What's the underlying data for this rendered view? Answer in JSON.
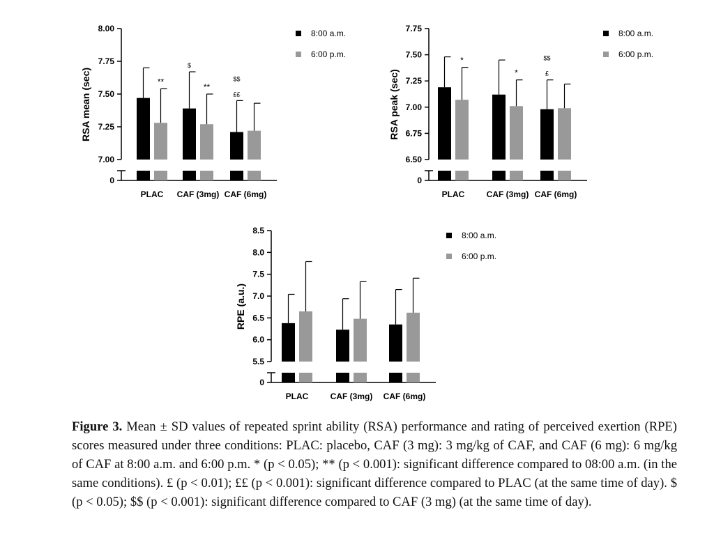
{
  "chart_data": [
    {
      "type": "bar",
      "ylabel": "RSA mean (sec)",
      "categories": [
        "PLAC",
        "CAF (3mg)",
        "CAF (6mg)"
      ],
      "ylim": [
        7.0,
        8.0
      ],
      "yticks": [
        "8.00",
        "7.75",
        "7.50",
        "7.25",
        "7.00"
      ],
      "broken_axis_zero_label": "0",
      "legend": [
        "8:00 a.m.",
        "6:00 p.m."
      ],
      "legend_position": "right",
      "series": [
        {
          "name": "8:00 a.m.",
          "color": "#000000",
          "values": [
            7.47,
            7.39,
            7.21
          ],
          "sd": [
            0.23,
            0.28,
            0.24
          ],
          "annotations": [
            "",
            "$",
            "$$\n££"
          ]
        },
        {
          "name": "6:00 p.m.",
          "color": "#999999",
          "values": [
            7.28,
            7.27,
            7.22
          ],
          "sd": [
            0.26,
            0.23,
            0.21
          ],
          "annotations": [
            "**",
            "**",
            ""
          ]
        }
      ]
    },
    {
      "type": "bar",
      "ylabel": "RSA peak (sec)",
      "categories": [
        "PLAC",
        "CAF (3mg)",
        "CAF (6mg)"
      ],
      "ylim": [
        6.5,
        7.75
      ],
      "yticks": [
        "7.75",
        "7.50",
        "7.25",
        "7.00",
        "6.75",
        "6.50"
      ],
      "broken_axis_zero_label": "0",
      "legend": [
        "8:00 a.m.",
        "6:00 p.m."
      ],
      "legend_position": "right",
      "series": [
        {
          "name": "8:00 a.m.",
          "color": "#000000",
          "values": [
            7.19,
            7.12,
            6.98
          ],
          "sd": [
            0.29,
            0.33,
            0.28
          ],
          "annotations": [
            "",
            "",
            "$$\n£"
          ]
        },
        {
          "name": "6:00 p.m.",
          "color": "#999999",
          "values": [
            7.07,
            7.01,
            6.99
          ],
          "sd": [
            0.31,
            0.25,
            0.23
          ],
          "annotations": [
            "*",
            "*",
            ""
          ]
        }
      ]
    },
    {
      "type": "bar",
      "ylabel": "RPE (a.u.)",
      "categories": [
        "PLAC",
        "CAF (3mg)",
        "CAF (6mg)"
      ],
      "ylim": [
        5.5,
        8.5
      ],
      "yticks": [
        "8.5",
        "8.0",
        "7.5",
        "7.0",
        "6.5",
        "6.0",
        "5.5"
      ],
      "broken_axis_zero_label": "0",
      "legend": [
        "8:00 a.m.",
        "6:00 p.m."
      ],
      "legend_position": "right",
      "series": [
        {
          "name": "8:00 a.m.",
          "color": "#000000",
          "values": [
            6.38,
            6.23,
            6.35
          ],
          "sd": [
            0.66,
            0.71,
            0.8
          ],
          "annotations": [
            "",
            "",
            ""
          ]
        },
        {
          "name": "6:00 p.m.",
          "color": "#999999",
          "values": [
            6.65,
            6.48,
            6.62
          ],
          "sd": [
            1.14,
            0.85,
            0.79
          ],
          "annotations": [
            "",
            "",
            ""
          ]
        }
      ]
    }
  ],
  "caption": {
    "label": "Figure 3.",
    "text": "Mean ± SD values of repeated sprint ability (RSA) performance and rating of perceived exertion (RPE) scores measured under three conditions: PLAC: placebo, CAF (3 mg): 3 mg/kg of CAF, and CAF (6 mg): 6 mg/kg of CAF at 8:00 a.m. and 6:00 p.m. * (p < 0.05); ** (p < 0.001): significant difference compared to 08:00 a.m. (in the same conditions). £ (p < 0.01); ££ (p < 0.001): significant difference compared to PLAC (at the same time of day). $ (p < 0.05); $$ (p < 0.001): significant difference compared to CAF (3 mg) (at the same time of day)."
  }
}
